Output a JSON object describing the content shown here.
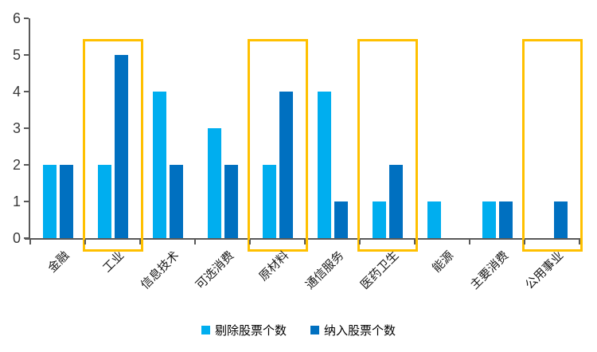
{
  "chart_data": {
    "type": "bar",
    "title": "",
    "xlabel": "",
    "ylabel": "",
    "categories": [
      "金融",
      "工业",
      "信息技术",
      "可选消费",
      "原材料",
      "通信服务",
      "医药卫生",
      "能源",
      "主要消费",
      "公用事业"
    ],
    "series": [
      {
        "name": "剔除股票个数",
        "color": "#00AEEF",
        "values": [
          2,
          2,
          4,
          3,
          2,
          4,
          1,
          1,
          1,
          0
        ]
      },
      {
        "name": "纳入股票个数",
        "color": "#0070C0",
        "values": [
          2,
          5,
          2,
          2,
          4,
          1,
          2,
          0,
          1,
          1
        ]
      }
    ],
    "ylim": [
      0,
      6
    ],
    "yticks": [
      "0",
      "1",
      "2",
      "3",
      "4",
      "5",
      "6"
    ],
    "grid": false,
    "legend_position": "bottom",
    "highlighted_categories": [
      "工业",
      "原材料",
      "医药卫生",
      "公用事业"
    ],
    "highlight_color": "#FFC000",
    "axis_color": "#595959"
  }
}
